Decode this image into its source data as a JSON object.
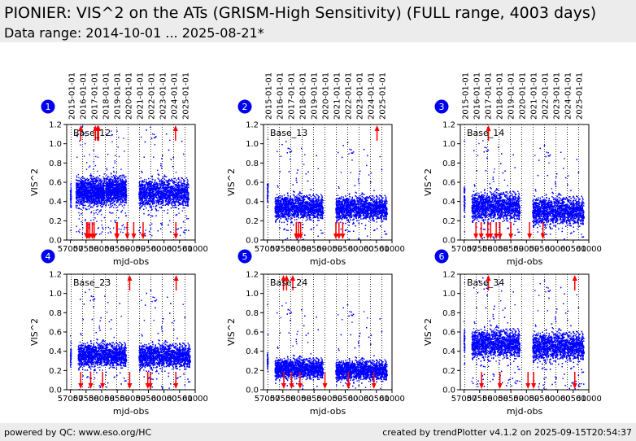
{
  "header": {
    "title": "PIONIER: VIS^2 on the ATs (GRISM-High Sensitivity) (FULL range, 4003 days)",
    "subtitle": "Data range: 2014-10-01 ... 2025-08-21*"
  },
  "footer": {
    "left": "powered by QC: www.eso.org/HC",
    "right": "created by trendPlotter v4.1.2 on 2025-09-15T20:54:37"
  },
  "chart_data": {
    "type": "scatter",
    "xlabel": "mjd-obs",
    "ylabel": "VIS^2",
    "ylim": [
      0.0,
      1.2
    ],
    "xlim": [
      56880,
      61000
    ],
    "yticks": [
      "0.0",
      "0.2",
      "0.4",
      "0.6",
      "0.8",
      "1.0",
      "1.2"
    ],
    "xtick_labels": [
      "57000",
      "57500",
      "58000",
      "58500",
      "59000",
      "59500",
      "60000",
      "60500",
      "61000"
    ],
    "xtick_values": [
      57000,
      57500,
      58000,
      58500,
      59000,
      59500,
      60000,
      60500,
      61000
    ],
    "year_markers": [
      "2015-01-01",
      "2016-01-01",
      "2017-01-01",
      "2018-01-01",
      "2019-01-01",
      "2020-01-01",
      "2021-01-01",
      "2022-01-01",
      "2023-01-01",
      "2024-01-01",
      "2025-01-01"
    ],
    "year_values": [
      57023,
      57388,
      57754,
      58119,
      58484,
      58849,
      59215,
      59580,
      59945,
      60310,
      60676
    ],
    "point_color": "#0000ff",
    "outlier_color": "#ff0000",
    "panels": [
      {
        "number": "1",
        "label": "Base_12",
        "scatter": 0.07,
        "series": [
          {
            "x_start": 57000,
            "x_end": 57030,
            "mean": 0.45
          },
          {
            "x_start": 57180,
            "x_end": 58100,
            "mean": 0.5
          },
          {
            "x_start": 58130,
            "x_end": 58800,
            "mean": 0.52
          },
          {
            "x_start": 59200,
            "x_end": 60800,
            "mean": 0.49
          }
        ],
        "outliers_high": [
          57330,
          57800,
          57870,
          57900,
          60370
        ],
        "outliers_low": [
          57520,
          57560,
          57620,
          57700,
          57760,
          58480,
          58500,
          58820,
          59030,
          59330,
          60380
        ]
      },
      {
        "number": "2",
        "label": "Base_13",
        "scatter": 0.06,
        "series": [
          {
            "x_start": 57000,
            "x_end": 57030,
            "mean": 0.5
          },
          {
            "x_start": 57250,
            "x_end": 58800,
            "mean": 0.34
          },
          {
            "x_start": 59200,
            "x_end": 60850,
            "mean": 0.33
          }
        ],
        "outliers_high": [
          60520
        ],
        "outliers_low": [
          57930,
          58000,
          58070,
          59200,
          59300,
          59420
        ]
      },
      {
        "number": "3",
        "label": "Base_14",
        "scatter": 0.07,
        "series": [
          {
            "x_start": 57000,
            "x_end": 57030,
            "mean": 0.42
          },
          {
            "x_start": 57250,
            "x_end": 58800,
            "mean": 0.35
          },
          {
            "x_start": 59200,
            "x_end": 60850,
            "mean": 0.3
          }
        ],
        "outliers_high": [
          57780
        ],
        "outliers_low": [
          57380,
          57550,
          57760,
          57850,
          58030,
          58150,
          58500,
          59100,
          59530
        ]
      },
      {
        "number": "4",
        "label": "Base_23",
        "scatter": 0.06,
        "series": [
          {
            "x_start": 57000,
            "x_end": 57030,
            "mean": 0.35
          },
          {
            "x_start": 57250,
            "x_end": 58800,
            "mean": 0.36
          },
          {
            "x_start": 59200,
            "x_end": 60850,
            "mean": 0.35
          }
        ],
        "outliers_high": [
          58900,
          60390
        ],
        "outliers_low": [
          57330,
          57650,
          58030,
          58900,
          59480,
          59560,
          60380
        ]
      },
      {
        "number": "5",
        "label": "Base_24",
        "scatter": 0.05,
        "series": [
          {
            "x_start": 57000,
            "x_end": 57030,
            "mean": 0.3
          },
          {
            "x_start": 57250,
            "x_end": 58800,
            "mean": 0.22
          },
          {
            "x_start": 59200,
            "x_end": 60850,
            "mean": 0.2
          }
        ],
        "outliers_high": [
          57520,
          57620,
          57820
        ],
        "outliers_low": [
          57530,
          57780,
          58050,
          58850,
          59600,
          60420
        ]
      },
      {
        "number": "6",
        "label": "Base_34",
        "scatter": 0.07,
        "series": [
          {
            "x_start": 57000,
            "x_end": 57030,
            "mean": 0.5
          },
          {
            "x_start": 57250,
            "x_end": 58800,
            "mean": 0.48
          },
          {
            "x_start": 59200,
            "x_end": 60850,
            "mean": 0.45
          }
        ],
        "outliers_high": [
          57780,
          60550
        ],
        "outliers_low": [
          57560,
          58150,
          59050,
          59230,
          60550
        ]
      }
    ]
  }
}
